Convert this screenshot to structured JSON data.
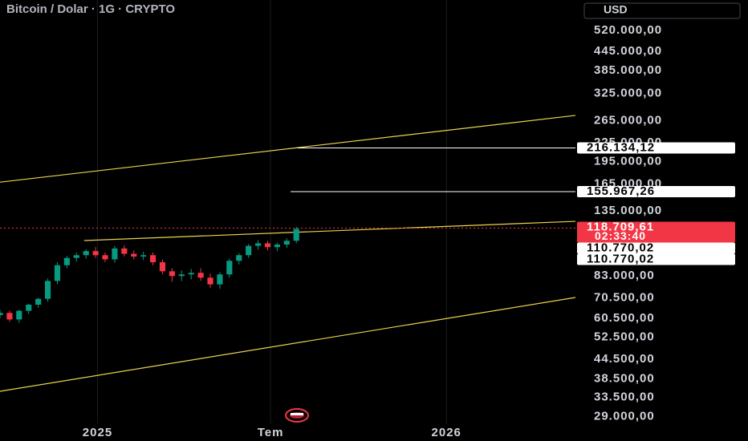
{
  "chart_data": {
    "type": "candlestick",
    "title": "Bitcoin / Dolar · 1G · CRYPTO",
    "currency": "USD",
    "log_scale": true,
    "x": [
      0,
      10,
      20,
      30,
      40,
      50,
      60,
      70,
      80,
      90,
      100,
      110,
      120,
      130,
      140,
      150,
      160,
      170,
      180,
      190,
      200,
      210,
      220,
      230,
      240,
      250,
      260,
      270,
      280,
      290,
      300,
      310
    ],
    "open": [
      62000,
      63000,
      60000,
      64000,
      67000,
      70000,
      80000,
      90000,
      95000,
      97000,
      100000,
      97000,
      94000,
      102000,
      98000,
      96000,
      97000,
      92000,
      86000,
      83000,
      84000,
      85000,
      82000,
      78000,
      84000,
      93000,
      97000,
      104000,
      106000,
      103000,
      105000,
      108000
    ],
    "high": [
      64500,
      64000,
      64500,
      67500,
      70500,
      81500,
      92000,
      96500,
      99000,
      101500,
      103000,
      99000,
      104000,
      104500,
      100500,
      99500,
      99000,
      94000,
      88000,
      86500,
      87500,
      88000,
      84500,
      85500,
      94500,
      98500,
      105500,
      108500,
      108000,
      106500,
      110000,
      120000
    ],
    "low": [
      60500,
      59000,
      58500,
      62500,
      65500,
      68500,
      78000,
      88000,
      92500,
      94500,
      95000,
      92000,
      91500,
      96000,
      94000,
      93500,
      90000,
      84000,
      79500,
      80000,
      81000,
      80000,
      76000,
      75500,
      82000,
      90500,
      95000,
      101000,
      100500,
      100000,
      102500,
      106000
    ],
    "close": [
      63000,
      60000,
      64000,
      67000,
      70000,
      80000,
      90000,
      95000,
      97000,
      100000,
      97000,
      94000,
      102000,
      98000,
      96000,
      97000,
      92000,
      86000,
      83000,
      84000,
      85000,
      82000,
      78000,
      84000,
      93000,
      97000,
      104000,
      106000,
      103000,
      105000,
      108000,
      118000
    ],
    "up_color": "#089981",
    "down_color": "#f23645",
    "xlim": [
      0,
      602
    ],
    "xticks": [
      {
        "value": 102,
        "label": "2025"
      },
      {
        "value": 283,
        "label": "Tem"
      },
      {
        "value": 467,
        "label": "2026"
      }
    ],
    "ylim": [
      27600,
      653000
    ],
    "yticks": [
      {
        "value": 520000,
        "label": "520.000,00"
      },
      {
        "value": 445000,
        "label": "445.000,00"
      },
      {
        "value": 385000,
        "label": "385.000,00"
      },
      {
        "value": 325000,
        "label": "325.000,00"
      },
      {
        "value": 265000,
        "label": "265.000,00"
      },
      {
        "value": 225000,
        "label": "225.000,00"
      },
      {
        "value": 195000,
        "label": "195.000,00"
      },
      {
        "value": 165000,
        "label": "165.000,00"
      },
      {
        "value": 135000,
        "label": "135.000,00"
      },
      {
        "value": 83000,
        "label": "83.000,00"
      },
      {
        "value": 70500,
        "label": "70.500,00"
      },
      {
        "value": 60500,
        "label": "60.500,00"
      },
      {
        "value": 52500,
        "label": "52.500,00"
      },
      {
        "value": 44500,
        "label": "44.500,00"
      },
      {
        "value": 38500,
        "label": "38.500,00"
      },
      {
        "value": 33500,
        "label": "33.500,00"
      },
      {
        "value": 29000,
        "label": "29.000,00"
      }
    ],
    "trendlines": [
      {
        "x": [
          0,
          602
        ],
        "y": [
          167400,
          275600
        ],
        "color": "#e8d44d"
      },
      {
        "x": [
          0,
          602
        ],
        "y": [
          35080,
          70700
        ],
        "color": "#e8d44d"
      },
      {
        "x": [
          88,
          602
        ],
        "y": [
          108200,
          124900
        ],
        "color": "#e8d44d"
      }
    ],
    "hlines": [
      {
        "x": 311,
        "y": 216134.12,
        "color": "#ffffff"
      },
      {
        "x": 304,
        "y": 155967.26,
        "color": "#ffffff"
      }
    ],
    "price_labels": [
      {
        "value": 216134.12,
        "label": "216.134,12",
        "color": "#ffffff"
      },
      {
        "value": 155967.26,
        "label": "155.967,26",
        "color": "#ffffff"
      },
      {
        "value": 118709.61,
        "label": "118.709,61",
        "countdown": "02:33:40",
        "color": "#f23645"
      },
      {
        "value": 110770.02,
        "label": "110.770,02",
        "color": "#ffffff"
      },
      {
        "value": 110770.02,
        "label": "110.770,02",
        "color": "#ffffff"
      }
    ]
  }
}
